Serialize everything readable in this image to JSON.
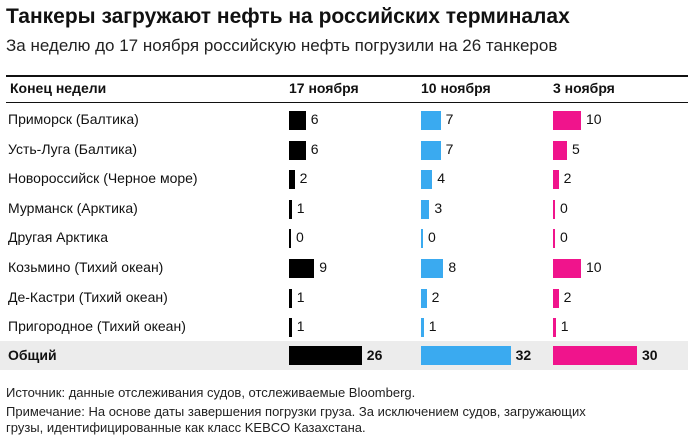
{
  "header": {
    "title": "Танкеры загружают нефть на российских терминалах",
    "subtitle": "За неделю до 17 ноября российскую нефть погрузили на 26 танкеров"
  },
  "columns": {
    "label_header": "Конец недели",
    "weeks": [
      "17 ноября",
      "10 ноября",
      "3 ноября"
    ]
  },
  "colors": {
    "week_17": "#000000",
    "week_10": "#3aaaf0",
    "week_3": "#f0148c",
    "total_row_bg": "#ececec"
  },
  "chart_data": {
    "type": "bar",
    "title": "Танкеры загружают нефть на российских терминалах",
    "subtitle": "За неделю до 17 ноября российскую нефть погрузили на 26 танкеров",
    "categories": [
      "Приморск (Балтика)",
      "Усть-Луга (Балтика)",
      "Новороссийск (Черное море)",
      "Мурманск (Арктика)",
      "Другая Арктика",
      "Козьмино (Тихий океан)",
      "Де-Кастри (Тихий океан)",
      "Пригородное (Тихий океан)"
    ],
    "series": [
      {
        "name": "17 ноября",
        "values": [
          6,
          6,
          2,
          1,
          0,
          9,
          1,
          1
        ]
      },
      {
        "name": "10 ноября",
        "values": [
          7,
          7,
          4,
          3,
          0,
          8,
          2,
          1
        ]
      },
      {
        "name": "3 ноября",
        "values": [
          10,
          5,
          2,
          0,
          0,
          10,
          2,
          1
        ]
      }
    ],
    "total": {
      "label": "Общий",
      "values": [
        26,
        32,
        30
      ]
    },
    "xlabel": "",
    "ylabel": "",
    "xlim": [
      0,
      30
    ]
  },
  "footer": {
    "source": "Источник: данные отслеживания судов, отслеживаемые Bloomberg.",
    "note_line1": "Примечание: На основе даты завершения погрузки груза. За исключением судов, загружающих",
    "note_line2": "грузы, идентифицированные как класс KEBCO Казахстана."
  }
}
